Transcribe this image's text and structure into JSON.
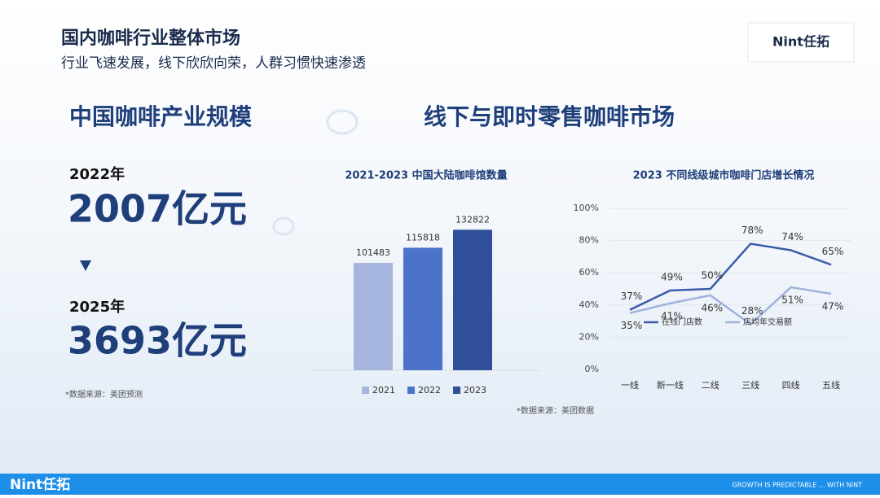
{
  "header": {
    "title": "国内咖啡行业整体市场",
    "subtitle": "行业飞速发展，线下欣欣向荣，人群习惯快速渗透",
    "logo": "Nint任拓"
  },
  "scale": {
    "heading": "中国咖啡产业规模",
    "year1": "2022年",
    "value1": "2007亿元",
    "year2": "2025年",
    "value2": "3693亿元",
    "source": "*数据来源：美团预测"
  },
  "market": {
    "heading": "线下与即时零售咖啡市场",
    "source": "*数据来源：美团数据"
  },
  "chart_data": [
    {
      "type": "bar",
      "title": "2021-2023 中国大陆咖啡馆数量",
      "categories": [
        "2021",
        "2022",
        "2023"
      ],
      "values": [
        101483,
        115818,
        132822
      ],
      "colors": [
        "#a6b5de",
        "#4a73c9",
        "#2f5099"
      ],
      "ylim": [
        0,
        150000
      ],
      "legend": "bottom"
    },
    {
      "type": "line",
      "title": "2023 不同线级城市咖啡门店增长情况",
      "categories": [
        "一线",
        "新一线",
        "二线",
        "三线",
        "四线",
        "五线"
      ],
      "series": [
        {
          "name": "在线门店数",
          "color": "#3a5ca8",
          "values": [
            37,
            49,
            50,
            78,
            74,
            65
          ],
          "value_labels": [
            "37%",
            "49%",
            "50%",
            "78%",
            "74%",
            "65%"
          ]
        },
        {
          "name": "店均年交易额",
          "color": "#9fb2dc",
          "values": [
            35,
            41,
            46,
            28,
            51,
            47
          ],
          "value_labels": [
            "35%",
            "41%",
            "46%",
            "28%",
            "51%",
            "47%"
          ]
        }
      ],
      "ylim": [
        0,
        100
      ],
      "yticks": [
        {
          "value": 0,
          "label": "0%"
        },
        {
          "value": 20,
          "label": "20%"
        },
        {
          "value": 40,
          "label": "40%"
        },
        {
          "value": 60,
          "label": "60%"
        },
        {
          "value": 80,
          "label": "80%"
        },
        {
          "value": 100,
          "label": "100%"
        }
      ],
      "legend": "inside"
    }
  ],
  "footer": {
    "logo": "Nint任拓",
    "slogan": "GROWTH IS PREDICTABLE ... WITH NINT"
  }
}
